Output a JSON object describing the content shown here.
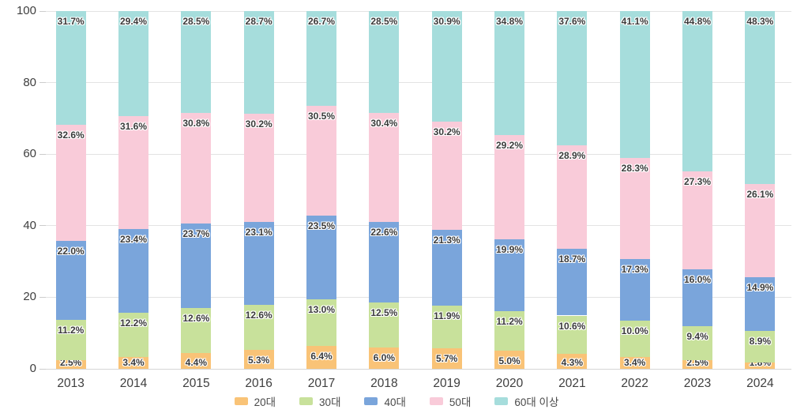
{
  "chart_data": {
    "type": "bar",
    "stacked": true,
    "orientation": "vertical",
    "title": "",
    "xlabel": "",
    "ylabel": "",
    "ylim": [
      0,
      100
    ],
    "y_ticks": [
      0,
      20,
      40,
      60,
      80,
      100
    ],
    "grid": true,
    "legend_position": "bottom",
    "value_suffix": "%",
    "categories": [
      "2013",
      "2014",
      "2015",
      "2016",
      "2017",
      "2018",
      "2019",
      "2020",
      "2021",
      "2022",
      "2023",
      "2024"
    ],
    "series": [
      {
        "name": "20대",
        "color": "#F9C377",
        "values": [
          2.5,
          3.4,
          4.4,
          5.3,
          6.4,
          6.0,
          5.7,
          5.0,
          4.3,
          3.4,
          2.5,
          1.8
        ]
      },
      {
        "name": "30대",
        "color": "#C8E19B",
        "values": [
          11.2,
          12.2,
          12.6,
          12.6,
          13.0,
          12.5,
          11.9,
          11.2,
          10.6,
          10.0,
          9.4,
          8.9
        ]
      },
      {
        "name": "40대",
        "color": "#7AA5DB",
        "values": [
          22.0,
          23.4,
          23.7,
          23.1,
          23.5,
          22.6,
          21.3,
          19.9,
          18.7,
          17.3,
          16.0,
          14.9
        ]
      },
      {
        "name": "50대",
        "color": "#F9CBD9",
        "values": [
          32.6,
          31.6,
          30.8,
          30.2,
          30.5,
          30.4,
          30.2,
          29.2,
          28.9,
          28.3,
          27.3,
          26.1
        ]
      },
      {
        "name": "60대 이상",
        "color": "#A6DDDC",
        "values": [
          31.7,
          29.4,
          28.5,
          28.7,
          26.7,
          28.5,
          30.9,
          34.8,
          37.6,
          41.1,
          44.8,
          48.3
        ]
      }
    ],
    "colors": {
      "axis_text": "#3e3e3e",
      "gridline": "#e3e3e3",
      "value_label_text": "#3a3a3a"
    }
  }
}
